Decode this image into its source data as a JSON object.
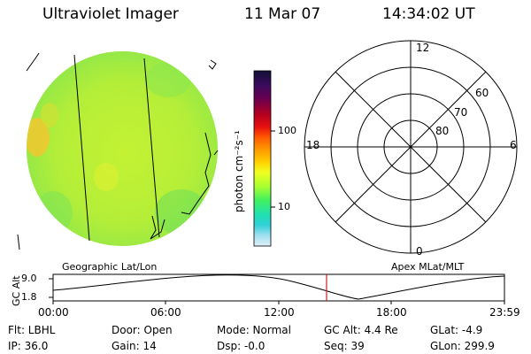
{
  "header": {
    "title": "Ultraviolet Imager",
    "date": "11 Mar 07",
    "time": "14:34:02 UT"
  },
  "colorbar": {
    "label": "photon cm⁻²s⁻¹",
    "ticks": [
      "100",
      "10"
    ],
    "colors": [
      "#111133",
      "#3a0a5e",
      "#6a0050",
      "#b4001e",
      "#e81010",
      "#ff5a00",
      "#ff9a00",
      "#ffd000",
      "#f0ff20",
      "#a8ff30",
      "#40f060",
      "#20e0b0",
      "#30d0d8",
      "#a0e0f0",
      "#e0f0f8"
    ]
  },
  "polar": {
    "mlt_labels": {
      "top": "12",
      "left": "18",
      "right": "6",
      "bottom": "0"
    },
    "lat_labels": [
      "60",
      "70",
      "80"
    ]
  },
  "labels": {
    "geographic": "Geographic Lat/Lon",
    "apex": "Apex MLat/MLT",
    "gc_axis": "GC Alt",
    "gc_ticks": [
      "9.0",
      "1.8"
    ]
  },
  "timeline": {
    "ticks": [
      "00:00",
      "06:00",
      "12:00",
      "18:00",
      "23:59"
    ]
  },
  "status": {
    "row1": {
      "flt": "Flt: LBHL",
      "door": "Door: Open",
      "mode": "Mode: Normal",
      "gcalt": "GC Alt: 4.4 Re",
      "glat": "GLat:  -4.9"
    },
    "row2": {
      "ip": "IP: 36.0",
      "gain": "Gain: 14",
      "dsp": "Dsp:   -0.0",
      "seq": "Seq: 39",
      "glon": "GLon: 299.9"
    }
  },
  "colors": {
    "disk_base": "#b8f032",
    "disk_edge": "#8ce846",
    "disk_orange": "#f0c830",
    "timeline_marker": "#cc2222"
  }
}
